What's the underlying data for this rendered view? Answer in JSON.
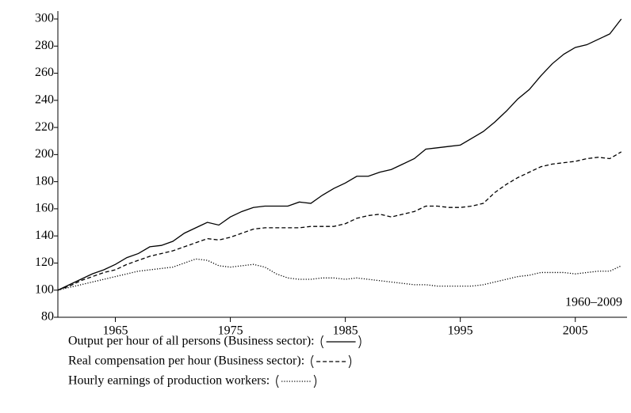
{
  "chart_data": {
    "type": "line",
    "annotation": "1960–2009",
    "x": [
      1960,
      1961,
      1962,
      1963,
      1964,
      1965,
      1966,
      1967,
      1968,
      1969,
      1970,
      1971,
      1972,
      1973,
      1974,
      1975,
      1976,
      1977,
      1978,
      1979,
      1980,
      1981,
      1982,
      1983,
      1984,
      1985,
      1986,
      1987,
      1988,
      1989,
      1990,
      1991,
      1992,
      1993,
      1994,
      1995,
      1996,
      1997,
      1998,
      1999,
      2000,
      2001,
      2002,
      2003,
      2004,
      2005,
      2006,
      2007,
      2008,
      2009
    ],
    "series": [
      {
        "name": "Output per hour of all persons (Business sector):",
        "color": "#000000",
        "style": "solid",
        "values": [
          100,
          104,
          108,
          112,
          115,
          119,
          124,
          127,
          132,
          133,
          136,
          142,
          146,
          150,
          148,
          154,
          158,
          161,
          162,
          162,
          162,
          165,
          164,
          170,
          175,
          179,
          184,
          184,
          187,
          189,
          193,
          197,
          204,
          205,
          206,
          207,
          212,
          217,
          224,
          232,
          241,
          248,
          258,
          267,
          274,
          279,
          281,
          285,
          289,
          300
        ]
      },
      {
        "name": "Real compensation per hour (Business sector):",
        "color": "#000000",
        "style": "dashed",
        "values": [
          100,
          103,
          107,
          110,
          113,
          115,
          119,
          122,
          125,
          127,
          129,
          132,
          135,
          138,
          137,
          139,
          142,
          145,
          146,
          146,
          146,
          146,
          147,
          147,
          147,
          149,
          153,
          155,
          156,
          154,
          156,
          158,
          162,
          162,
          161,
          161,
          162,
          164,
          172,
          178,
          183,
          187,
          191,
          193,
          194,
          195,
          197,
          198,
          197,
          202
        ]
      },
      {
        "name": "Hourly earnings of production workers:",
        "color": "#000000",
        "style": "dotted",
        "values": [
          100,
          102,
          104,
          106,
          108,
          110,
          112,
          114,
          115,
          116,
          117,
          120,
          123,
          122,
          118,
          117,
          118,
          119,
          117,
          112,
          109,
          108,
          108,
          109,
          109,
          108,
          109,
          108,
          107,
          106,
          105,
          104,
          104,
          103,
          103,
          103,
          103,
          104,
          106,
          108,
          110,
          111,
          113,
          113,
          113,
          112,
          113,
          114,
          114,
          118
        ]
      }
    ],
    "xlim": [
      1960,
      2009.5
    ],
    "xticks": [
      1965,
      1975,
      1985,
      1995,
      2005
    ],
    "ylim": [
      80,
      300
    ],
    "yticks": [
      80,
      100,
      120,
      140,
      160,
      180,
      200,
      220,
      240,
      260,
      280,
      300
    ],
    "grid": false
  }
}
